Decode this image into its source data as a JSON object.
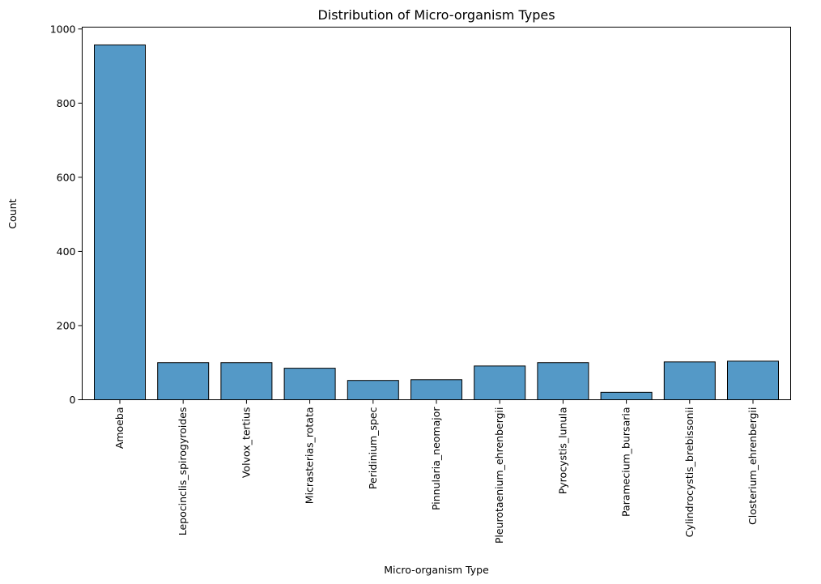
{
  "chart_data": {
    "type": "bar",
    "title": "Distribution of Micro-organism Types",
    "xlabel": "Micro-organism Type",
    "ylabel": "Count",
    "categories": [
      "Amoeba",
      "Lepocinclis_spirogyroides",
      "Volvox_tertius",
      "Micrasterias_rotata",
      "Peridinium_spec",
      "Pinnularia_neomajor",
      "Pleurotaenium_ehrenbergii",
      "Pyrocystis_lunula",
      "Paramecium_bursaria",
      "Cylindrocystis_brebissonii",
      "Closterium_ehrenbergii"
    ],
    "values": [
      957,
      100,
      100,
      85,
      52,
      54,
      91,
      100,
      20,
      102,
      104
    ],
    "yticks": [
      0,
      200,
      400,
      600,
      800,
      1000
    ],
    "ylim": [
      0,
      1005
    ],
    "grid": false,
    "bar_color": "#5499c7"
  }
}
